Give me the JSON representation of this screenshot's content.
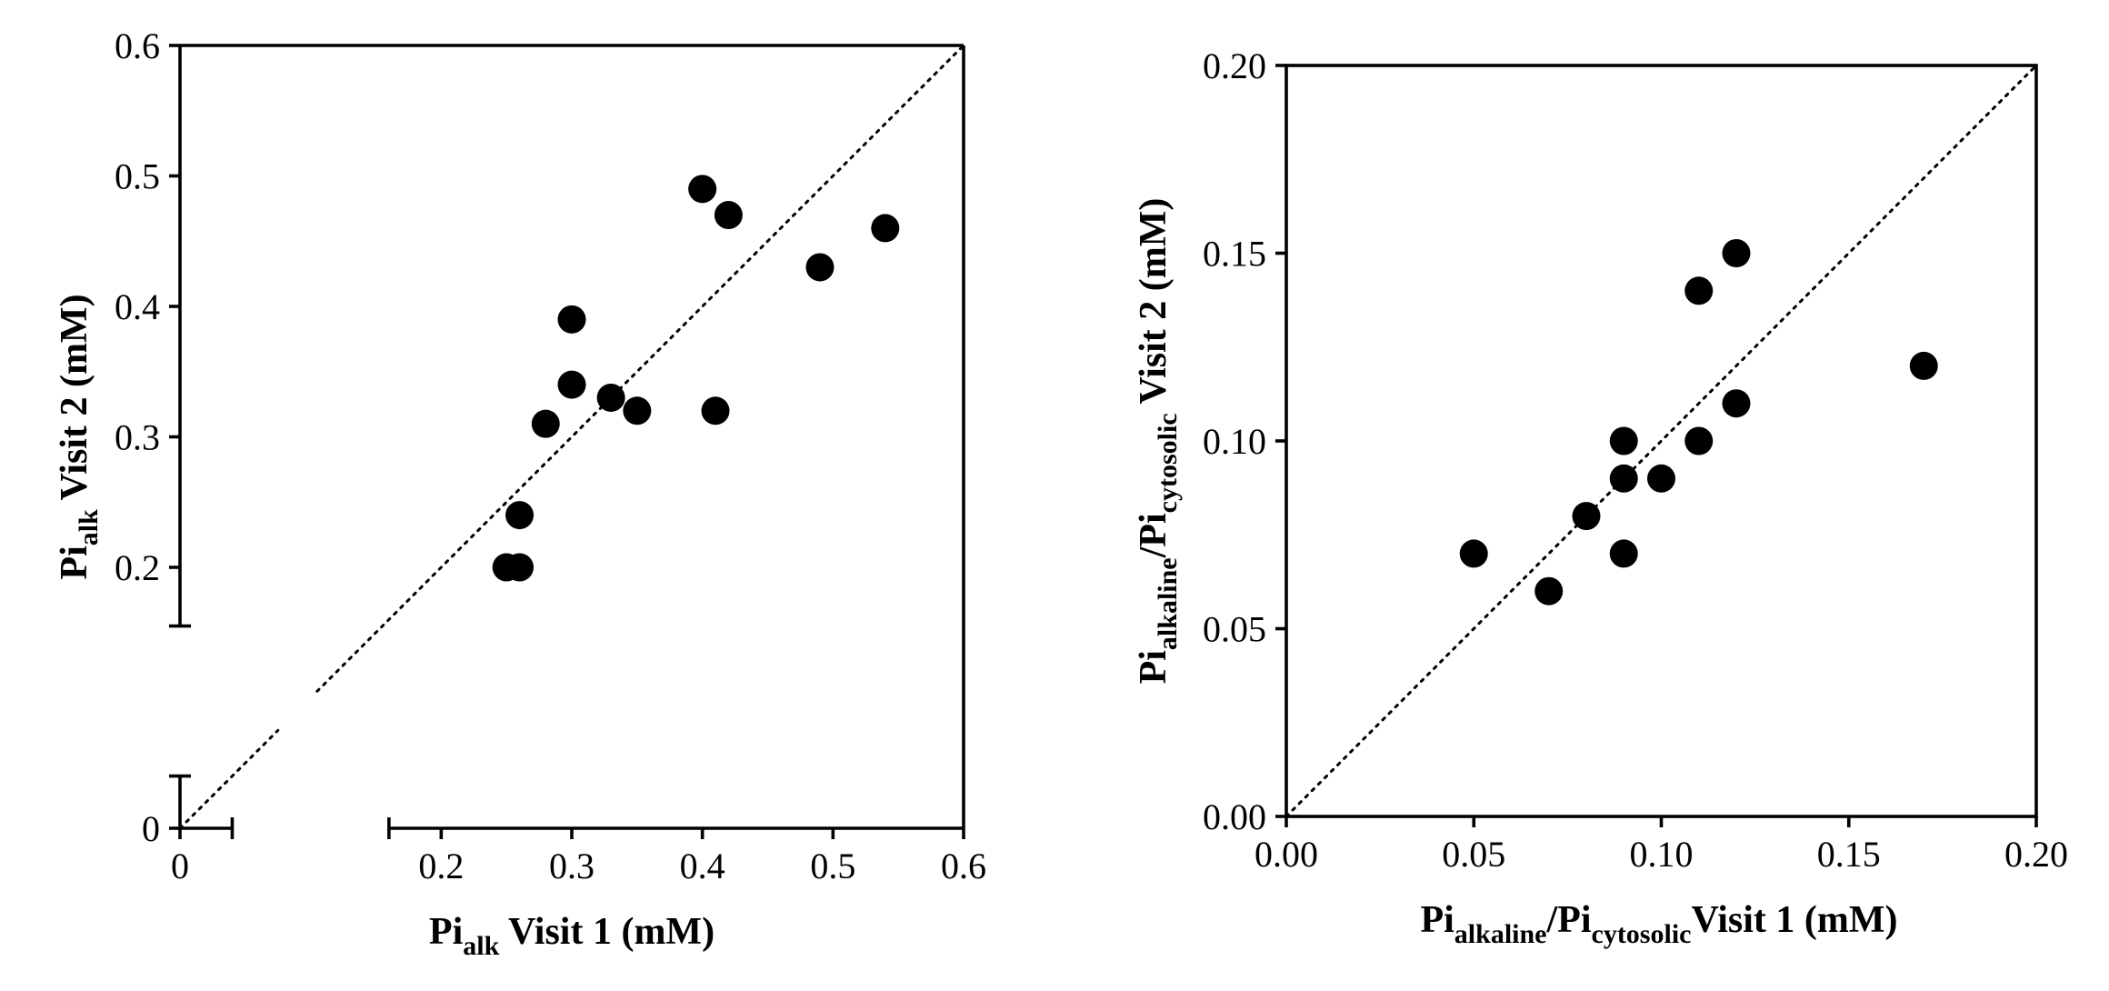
{
  "chart_data": [
    {
      "type": "scatter",
      "xlabel": {
        "main": "Pi",
        "sub": "alk",
        "rest": " Visit 1 (mM)"
      },
      "ylabel": {
        "main": "Pi",
        "sub": "alk",
        "rest": " Visit 2 (mM)"
      },
      "xlim": [
        0,
        0.6
      ],
      "ylim": [
        0,
        0.6
      ],
      "x_axis_break": [
        0.04,
        0.16
      ],
      "y_axis_break": [
        0.04,
        0.155
      ],
      "x_ticks": [
        0,
        0.2,
        0.3,
        0.4,
        0.5,
        0.6
      ],
      "x_tick_labels": [
        "0",
        "0.2",
        "0.3",
        "0.4",
        "0.5",
        "0.6"
      ],
      "y_ticks": [
        0,
        0.2,
        0.3,
        0.4,
        0.5,
        0.6
      ],
      "y_tick_labels": [
        "0",
        "0.2",
        "0.3",
        "0.4",
        "0.5",
        "0.6"
      ],
      "identity_line": true,
      "grid": false,
      "points": [
        {
          "x": 0.25,
          "y": 0.2
        },
        {
          "x": 0.26,
          "y": 0.2
        },
        {
          "x": 0.26,
          "y": 0.24
        },
        {
          "x": 0.28,
          "y": 0.31
        },
        {
          "x": 0.3,
          "y": 0.34
        },
        {
          "x": 0.3,
          "y": 0.39
        },
        {
          "x": 0.33,
          "y": 0.33
        },
        {
          "x": 0.35,
          "y": 0.32
        },
        {
          "x": 0.41,
          "y": 0.32
        },
        {
          "x": 0.4,
          "y": 0.49
        },
        {
          "x": 0.42,
          "y": 0.47
        },
        {
          "x": 0.49,
          "y": 0.43
        },
        {
          "x": 0.54,
          "y": 0.46
        }
      ]
    },
    {
      "type": "scatter",
      "xlabel": {
        "main": "Pi",
        "sub": "alkaline",
        "mid": "/Pi",
        "sub2": "cytosolic",
        "rest": "Visit 1 (mM)"
      },
      "ylabel": {
        "main": "Pi",
        "sub": "alkaline",
        "mid": "/Pi",
        "sub2": "cytosolic",
        "rest": " Visit 2 (mM)"
      },
      "xlim": [
        0,
        0.2
      ],
      "ylim": [
        0,
        0.2
      ],
      "x_ticks": [
        0,
        0.05,
        0.1,
        0.15,
        0.2
      ],
      "x_tick_labels": [
        "0.00",
        "0.05",
        "0.10",
        "0.15",
        "0.20"
      ],
      "y_ticks": [
        0,
        0.05,
        0.1,
        0.15,
        0.2
      ],
      "y_tick_labels": [
        "0.00",
        "0.05",
        "0.10",
        "0.15",
        "0.20"
      ],
      "identity_line": true,
      "grid": false,
      "points": [
        {
          "x": 0.05,
          "y": 0.07
        },
        {
          "x": 0.07,
          "y": 0.06
        },
        {
          "x": 0.08,
          "y": 0.08
        },
        {
          "x": 0.09,
          "y": 0.07
        },
        {
          "x": 0.09,
          "y": 0.09
        },
        {
          "x": 0.09,
          "y": 0.1
        },
        {
          "x": 0.1,
          "y": 0.09
        },
        {
          "x": 0.11,
          "y": 0.1
        },
        {
          "x": 0.11,
          "y": 0.14
        },
        {
          "x": 0.12,
          "y": 0.11
        },
        {
          "x": 0.12,
          "y": 0.15
        },
        {
          "x": 0.17,
          "y": 0.12
        }
      ]
    }
  ]
}
